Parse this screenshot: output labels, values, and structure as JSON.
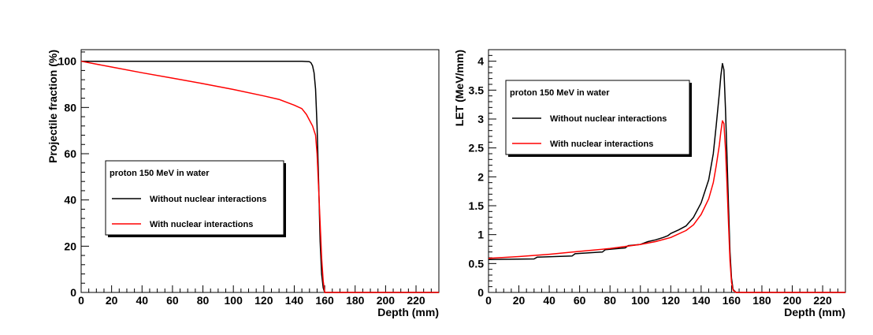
{
  "chart_data": [
    {
      "type": "line",
      "id": "fraction",
      "ylabel": "Projectile fraction (%)",
      "xlabel": "Depth (mm)",
      "xlim": [
        0,
        235
      ],
      "ylim": [
        0,
        105
      ],
      "xticks": [
        0,
        20,
        40,
        60,
        80,
        100,
        120,
        140,
        160,
        180,
        200,
        220
      ],
      "yticks": [
        0,
        20,
        40,
        60,
        80,
        100
      ],
      "legend": {
        "title": "proton 150 MeV in water",
        "placement": "center-left",
        "entries": [
          "Without nuclear interactions",
          "With nuclear interactions"
        ]
      },
      "series": [
        {
          "name": "Without nuclear interactions",
          "color": "#000000",
          "x": [
            0,
            50,
            100,
            145,
            150,
            151,
            152,
            153,
            154,
            155,
            156,
            157,
            158,
            159,
            160,
            170,
            235
          ],
          "y": [
            100,
            100,
            100,
            100,
            99.8,
            99.3,
            98,
            95,
            88,
            72,
            48,
            22,
            8,
            2,
            0,
            0,
            0
          ]
        },
        {
          "name": "With nuclear interactions",
          "color": "#ff0000",
          "x": [
            0,
            20,
            40,
            60,
            80,
            100,
            120,
            130,
            140,
            145,
            148,
            150,
            152,
            154,
            155,
            156,
            157,
            158,
            159,
            160,
            170,
            235
          ],
          "y": [
            100,
            97.5,
            95,
            92.7,
            90.3,
            87.8,
            85,
            83.5,
            81,
            79.5,
            77,
            74.5,
            72,
            68,
            60,
            45,
            30,
            15,
            5,
            0,
            0,
            0
          ]
        }
      ]
    },
    {
      "type": "line",
      "id": "let",
      "ylabel": "LET (MeV/mm)",
      "xlabel": "Depth (mm)",
      "xlim": [
        0,
        235
      ],
      "ylim": [
        0,
        4.2
      ],
      "xticks": [
        0,
        20,
        40,
        60,
        80,
        100,
        120,
        140,
        160,
        180,
        200,
        220
      ],
      "yticks": [
        0,
        0.5,
        1,
        1.5,
        2,
        2.5,
        3,
        3.5,
        4
      ],
      "legend": {
        "title": "proton 150 MeV in water",
        "placement": "top-left",
        "entries": [
          "Without nuclear interactions",
          "With nuclear interactions"
        ]
      },
      "series": [
        {
          "name": "Without nuclear interactions",
          "color": "#000000",
          "x": [
            0,
            30,
            32,
            55,
            57,
            75,
            77,
            90,
            92,
            100,
            105,
            110,
            115,
            118,
            120,
            125,
            130,
            135,
            140,
            145,
            148,
            150,
            152,
            153,
            154,
            155,
            156,
            157,
            158,
            159,
            160,
            161,
            163,
            235
          ],
          "y": [
            0.57,
            0.58,
            0.61,
            0.63,
            0.67,
            0.7,
            0.74,
            0.77,
            0.81,
            0.83,
            0.88,
            0.91,
            0.95,
            0.98,
            1.02,
            1.08,
            1.15,
            1.3,
            1.55,
            1.95,
            2.4,
            2.9,
            3.45,
            3.75,
            3.96,
            3.85,
            3.2,
            2.4,
            1.5,
            0.7,
            0.25,
            0.05,
            0,
            0
          ]
        },
        {
          "name": "With nuclear interactions",
          "color": "#ff0000",
          "x": [
            0,
            20,
            40,
            60,
            80,
            100,
            110,
            120,
            130,
            135,
            140,
            145,
            148,
            150,
            152,
            153,
            154,
            155,
            156,
            157,
            158,
            159,
            160,
            161,
            163,
            235
          ],
          "y": [
            0.59,
            0.62,
            0.66,
            0.71,
            0.76,
            0.83,
            0.88,
            0.95,
            1.07,
            1.17,
            1.35,
            1.62,
            1.9,
            2.2,
            2.55,
            2.78,
            2.97,
            2.92,
            2.5,
            1.9,
            1.2,
            0.55,
            0.18,
            0.04,
            0,
            0
          ]
        }
      ]
    }
  ]
}
